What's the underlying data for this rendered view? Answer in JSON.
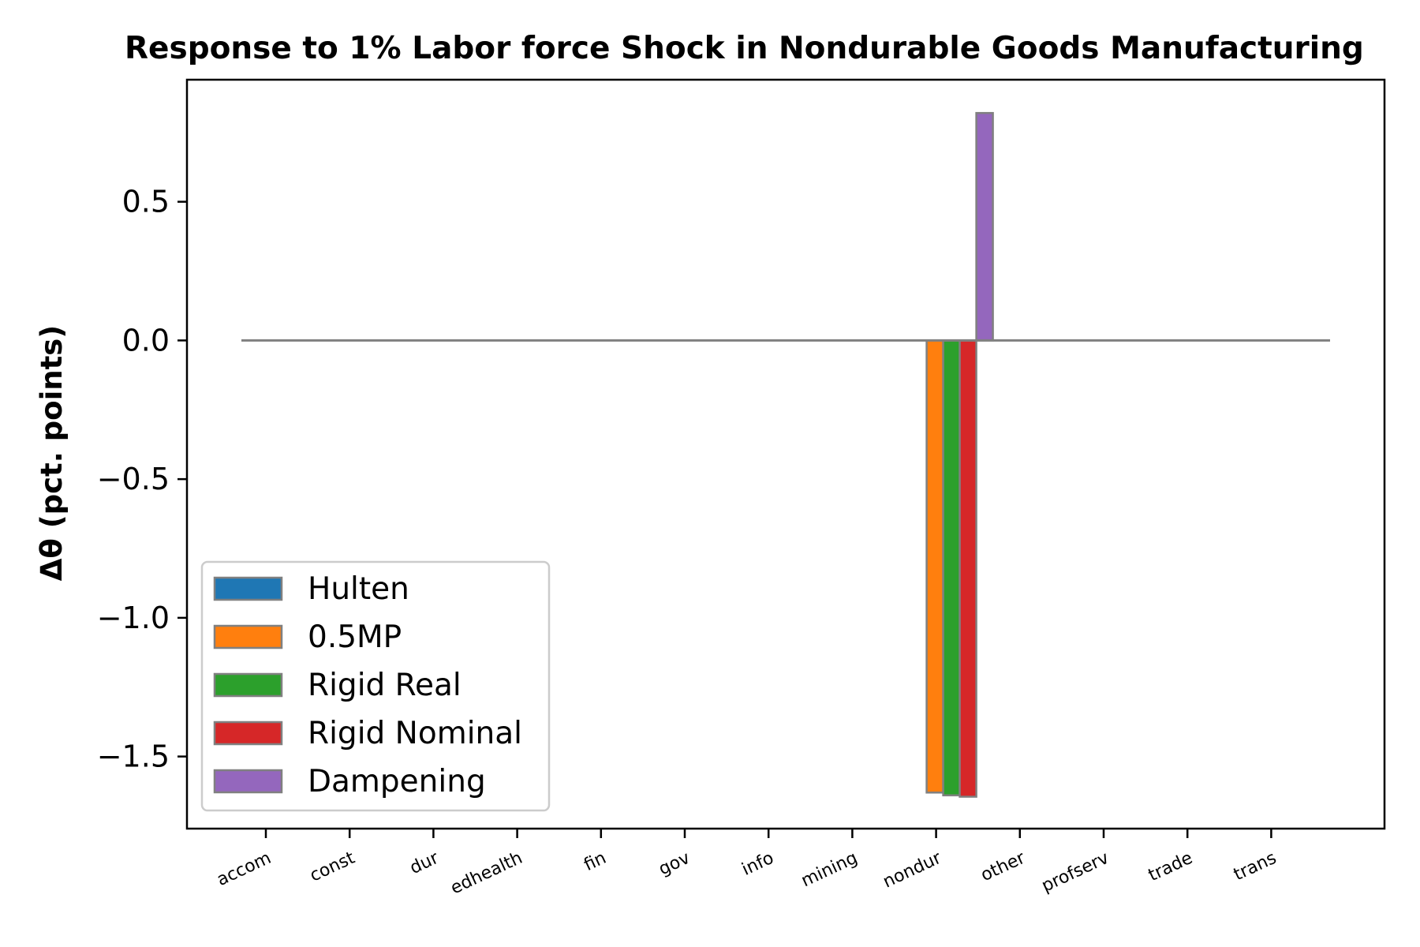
{
  "chart_data": {
    "type": "bar",
    "title": "Response to 1% Labor force Shock in Nondurable Goods Manufacturing",
    "xlabel": "",
    "ylabel": "Δθ  (pct. points)",
    "ylim": [
      -1.76,
      0.94
    ],
    "yticks": [
      0.5,
      0.0,
      -0.5,
      -1.0,
      -1.5
    ],
    "ytick_labels": [
      "0.5",
      "0.0",
      "−0.5",
      "−1.0",
      "−1.5"
    ],
    "categories": [
      "accom",
      "const",
      "dur",
      "edhealth",
      "fin",
      "gov",
      "info",
      "mining",
      "nondur",
      "other",
      "profserv",
      "trade",
      "trans"
    ],
    "legend_position": "lower-left",
    "grid": false,
    "series": [
      {
        "name": "Hulten",
        "color": "#1f77b4",
        "values": [
          0,
          0,
          0,
          0,
          0,
          0,
          0,
          0,
          0,
          0,
          0,
          0,
          0
        ]
      },
      {
        "name": "0.5MP",
        "color": "#ff7f0e",
        "values": [
          0,
          0,
          0,
          0,
          0,
          0,
          0,
          0,
          -1.63,
          0,
          0,
          0,
          0
        ]
      },
      {
        "name": "Rigid Real",
        "color": "#2ca02c",
        "values": [
          0,
          0,
          0,
          0,
          0,
          0,
          0,
          0,
          -1.64,
          0,
          0,
          0,
          0
        ]
      },
      {
        "name": "Rigid Nominal",
        "color": "#d62728",
        "values": [
          0,
          0,
          0,
          0,
          0,
          0,
          0,
          0,
          -1.645,
          0,
          0,
          0,
          0
        ]
      },
      {
        "name": "Dampening",
        "color": "#9467bd",
        "values": [
          0,
          0,
          0,
          0,
          0,
          0,
          0,
          0,
          0.82,
          0,
          0,
          0,
          0
        ]
      }
    ]
  }
}
